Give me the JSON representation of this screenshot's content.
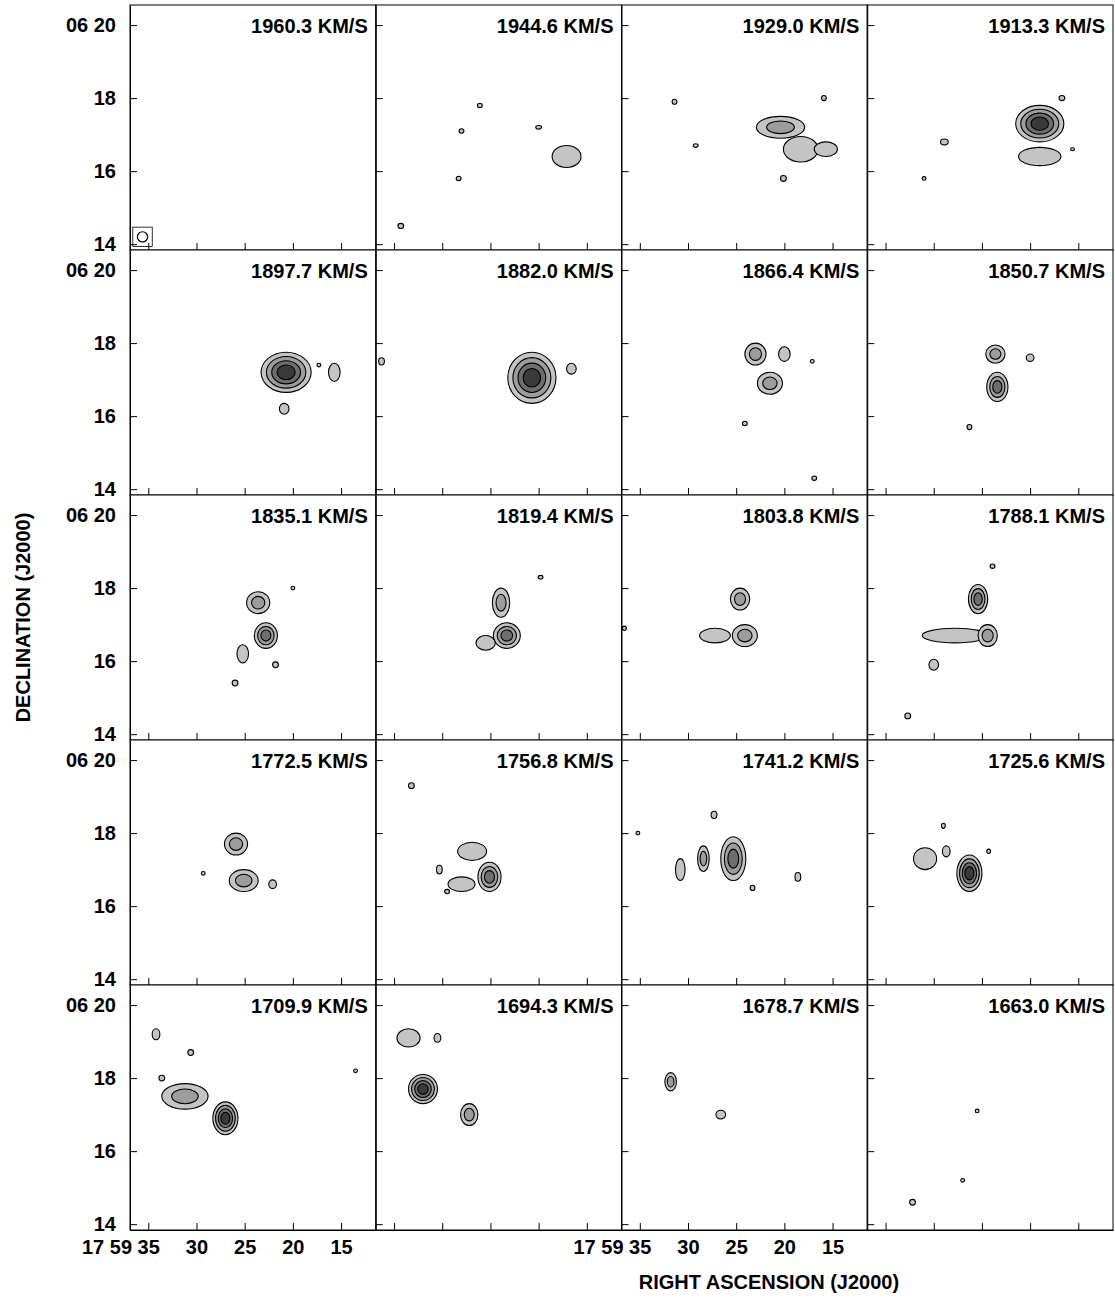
{
  "chart_data": {
    "type": "channel_map",
    "xlabel": "RIGHT ASCENSION (J2000)",
    "ylabel": "DECLINATION (J2000)",
    "xlim": [
      36.9,
      11.4
    ],
    "ylim": [
      13.84,
      20.55
    ],
    "xticks": [
      {
        "value": 35,
        "label": "17 59 35"
      },
      30,
      25,
      20,
      15
    ],
    "yticks": [
      {
        "value": 20,
        "label": "06 20"
      },
      18,
      16,
      14
    ],
    "panels": [
      {
        "title": "1960.3 KM/S",
        "tick_labels": "y",
        "beam": {
          "ra": 35.6,
          "dec": 14.2,
          "radius": 0.14
        },
        "sources": []
      },
      {
        "title": "1944.6 KM/S",
        "tick_labels": false,
        "sources": [
          {
            "ra": 17.1,
            "dec": 16.4,
            "rx": 1.5,
            "ry": 0.3,
            "levels": 1
          },
          {
            "ra": 26.1,
            "dec": 17.8,
            "rx": 0.25,
            "ry": 0.06,
            "levels": 1
          },
          {
            "ra": 28.0,
            "dec": 17.1,
            "rx": 0.25,
            "ry": 0.06,
            "levels": 1
          },
          {
            "ra": 28.3,
            "dec": 15.8,
            "rx": 0.25,
            "ry": 0.06,
            "levels": 1
          },
          {
            "ra": 34.3,
            "dec": 14.5,
            "rx": 0.3,
            "ry": 0.07,
            "levels": 1
          },
          {
            "ra": 20.0,
            "dec": 17.2,
            "rx": 0.3,
            "ry": 0.05,
            "levels": 1
          }
        ]
      },
      {
        "title": "1929.0 KM/S",
        "tick_labels": false,
        "sources": [
          {
            "ra": 20.4,
            "dec": 17.2,
            "rx": 2.5,
            "ry": 0.3,
            "levels": 2
          },
          {
            "ra": 18.3,
            "dec": 16.6,
            "rx": 1.8,
            "ry": 0.35,
            "levels": 1
          },
          {
            "ra": 15.7,
            "dec": 16.6,
            "rx": 1.2,
            "ry": 0.2,
            "levels": 1
          },
          {
            "ra": 31.4,
            "dec": 17.9,
            "rx": 0.25,
            "ry": 0.07,
            "levels": 1
          },
          {
            "ra": 29.2,
            "dec": 16.7,
            "rx": 0.25,
            "ry": 0.05,
            "levels": 1
          },
          {
            "ra": 20.1,
            "dec": 15.8,
            "rx": 0.3,
            "ry": 0.08,
            "levels": 1
          },
          {
            "ra": 15.9,
            "dec": 18.0,
            "rx": 0.25,
            "ry": 0.07,
            "levels": 1
          }
        ]
      },
      {
        "title": "1913.3 KM/S",
        "tick_labels": false,
        "sources": [
          {
            "ra": 19.0,
            "dec": 17.3,
            "rx": 2.5,
            "ry": 0.5,
            "levels": 4
          },
          {
            "ra": 19.0,
            "dec": 16.4,
            "rx": 2.2,
            "ry": 0.25,
            "levels": 1
          },
          {
            "ra": 28.9,
            "dec": 16.8,
            "rx": 0.4,
            "ry": 0.08,
            "levels": 1
          },
          {
            "ra": 31.0,
            "dec": 15.8,
            "rx": 0.2,
            "ry": 0.05,
            "levels": 1
          },
          {
            "ra": 16.7,
            "dec": 18.0,
            "rx": 0.3,
            "ry": 0.07,
            "levels": 1
          },
          {
            "ra": 15.6,
            "dec": 16.6,
            "rx": 0.2,
            "ry": 0.04,
            "levels": 1
          }
        ]
      },
      {
        "title": "1897.7 KM/S",
        "tick_labels": "y",
        "sources": [
          {
            "ra": 20.7,
            "dec": 17.2,
            "rx": 2.6,
            "ry": 0.55,
            "levels": 4
          },
          {
            "ra": 15.7,
            "dec": 17.2,
            "rx": 0.6,
            "ry": 0.25,
            "levels": 1
          },
          {
            "ra": 20.9,
            "dec": 16.2,
            "rx": 0.5,
            "ry": 0.15,
            "levels": 1
          },
          {
            "ra": 17.3,
            "dec": 17.4,
            "rx": 0.2,
            "ry": 0.05,
            "levels": 1
          }
        ]
      },
      {
        "title": "1882.0 KM/S",
        "tick_labels": false,
        "sources": [
          {
            "ra": 20.7,
            "dec": 17.05,
            "rx": 2.5,
            "ry": 0.7,
            "levels": 4
          },
          {
            "ra": 16.6,
            "dec": 17.3,
            "rx": 0.5,
            "ry": 0.15,
            "levels": 1
          },
          {
            "ra": 36.3,
            "dec": 17.5,
            "rx": 0.3,
            "ry": 0.1,
            "levels": 1
          }
        ]
      },
      {
        "title": "1866.4 KM/S",
        "tick_labels": false,
        "sources": [
          {
            "ra": 23.0,
            "dec": 17.7,
            "rx": 1.1,
            "ry": 0.3,
            "levels": 2
          },
          {
            "ra": 21.5,
            "dec": 16.9,
            "rx": 1.3,
            "ry": 0.3,
            "levels": 2
          },
          {
            "ra": 20.0,
            "dec": 17.7,
            "rx": 0.6,
            "ry": 0.2,
            "levels": 1
          },
          {
            "ra": 24.1,
            "dec": 15.8,
            "rx": 0.25,
            "ry": 0.06,
            "levels": 1
          },
          {
            "ra": 17.1,
            "dec": 17.5,
            "rx": 0.2,
            "ry": 0.05,
            "levels": 1
          },
          {
            "ra": 16.9,
            "dec": 14.3,
            "rx": 0.25,
            "ry": 0.06,
            "levels": 1
          }
        ]
      },
      {
        "title": "1850.7 KM/S",
        "tick_labels": false,
        "sources": [
          {
            "ra": 23.6,
            "dec": 17.7,
            "rx": 1.0,
            "ry": 0.25,
            "levels": 2
          },
          {
            "ra": 23.4,
            "dec": 16.8,
            "rx": 1.1,
            "ry": 0.4,
            "levels": 3
          },
          {
            "ra": 20.0,
            "dec": 17.6,
            "rx": 0.4,
            "ry": 0.1,
            "levels": 1
          },
          {
            "ra": 26.3,
            "dec": 15.7,
            "rx": 0.25,
            "ry": 0.07,
            "levels": 1
          }
        ]
      },
      {
        "title": "1835.1 KM/S",
        "tick_labels": "y",
        "sources": [
          {
            "ra": 23.6,
            "dec": 17.6,
            "rx": 1.2,
            "ry": 0.3,
            "levels": 2
          },
          {
            "ra": 22.8,
            "dec": 16.7,
            "rx": 1.2,
            "ry": 0.35,
            "levels": 3
          },
          {
            "ra": 25.2,
            "dec": 16.2,
            "rx": 0.6,
            "ry": 0.25,
            "levels": 1
          },
          {
            "ra": 21.8,
            "dec": 15.9,
            "rx": 0.3,
            "ry": 0.08,
            "levels": 1
          },
          {
            "ra": 26.0,
            "dec": 15.4,
            "rx": 0.3,
            "ry": 0.08,
            "levels": 1
          },
          {
            "ra": 20.0,
            "dec": 18.0,
            "rx": 0.2,
            "ry": 0.05,
            "levels": 1
          }
        ]
      },
      {
        "title": "1819.4 KM/S",
        "tick_labels": false,
        "sources": [
          {
            "ra": 23.9,
            "dec": 17.6,
            "rx": 0.9,
            "ry": 0.4,
            "levels": 2
          },
          {
            "ra": 23.3,
            "dec": 16.7,
            "rx": 1.4,
            "ry": 0.35,
            "levels": 3
          },
          {
            "ra": 25.5,
            "dec": 16.5,
            "rx": 1.0,
            "ry": 0.2,
            "levels": 1
          },
          {
            "ra": 19.8,
            "dec": 18.3,
            "rx": 0.25,
            "ry": 0.05,
            "levels": 1
          }
        ]
      },
      {
        "title": "1803.8 KM/S",
        "tick_labels": false,
        "sources": [
          {
            "ra": 24.6,
            "dec": 17.7,
            "rx": 1.0,
            "ry": 0.3,
            "levels": 2
          },
          {
            "ra": 24.1,
            "dec": 16.7,
            "rx": 1.3,
            "ry": 0.3,
            "levels": 2
          },
          {
            "ra": 27.2,
            "dec": 16.7,
            "rx": 1.6,
            "ry": 0.2,
            "levels": 1
          },
          {
            "ra": 36.6,
            "dec": 16.9,
            "rx": 0.2,
            "ry": 0.06,
            "levels": 1
          }
        ]
      },
      {
        "title": "1788.1 KM/S",
        "tick_labels": false,
        "sources": [
          {
            "ra": 25.4,
            "dec": 17.7,
            "rx": 1.0,
            "ry": 0.4,
            "levels": 3
          },
          {
            "ra": 27.8,
            "dec": 16.7,
            "rx": 3.4,
            "ry": 0.2,
            "levels": 1
          },
          {
            "ra": 24.4,
            "dec": 16.7,
            "rx": 1.0,
            "ry": 0.3,
            "levels": 2
          },
          {
            "ra": 30.0,
            "dec": 15.9,
            "rx": 0.5,
            "ry": 0.15,
            "levels": 1
          },
          {
            "ra": 32.7,
            "dec": 14.5,
            "rx": 0.3,
            "ry": 0.08,
            "levels": 1
          },
          {
            "ra": 23.9,
            "dec": 18.6,
            "rx": 0.25,
            "ry": 0.06,
            "levels": 1
          }
        ]
      },
      {
        "title": "1772.5 KM/S",
        "tick_labels": "y",
        "sources": [
          {
            "ra": 25.9,
            "dec": 17.7,
            "rx": 1.2,
            "ry": 0.3,
            "levels": 2
          },
          {
            "ra": 25.1,
            "dec": 16.7,
            "rx": 1.5,
            "ry": 0.3,
            "levels": 2
          },
          {
            "ra": 22.1,
            "dec": 16.6,
            "rx": 0.4,
            "ry": 0.12,
            "levels": 1
          },
          {
            "ra": 29.3,
            "dec": 16.9,
            "rx": 0.2,
            "ry": 0.05,
            "levels": 1
          }
        ]
      },
      {
        "title": "1756.8 KM/S",
        "tick_labels": false,
        "sources": [
          {
            "ra": 26.9,
            "dec": 17.5,
            "rx": 1.5,
            "ry": 0.25,
            "levels": 1
          },
          {
            "ra": 28.0,
            "dec": 16.6,
            "rx": 1.4,
            "ry": 0.2,
            "levels": 1
          },
          {
            "ra": 25.1,
            "dec": 16.8,
            "rx": 1.2,
            "ry": 0.4,
            "levels": 3
          },
          {
            "ra": 33.2,
            "dec": 19.3,
            "rx": 0.3,
            "ry": 0.08,
            "levels": 1
          },
          {
            "ra": 29.5,
            "dec": 16.4,
            "rx": 0.25,
            "ry": 0.06,
            "levels": 1
          },
          {
            "ra": 30.3,
            "dec": 17.0,
            "rx": 0.3,
            "ry": 0.12,
            "levels": 1
          }
        ]
      },
      {
        "title": "1741.2 KM/S",
        "tick_labels": false,
        "sources": [
          {
            "ra": 25.3,
            "dec": 17.3,
            "rx": 1.3,
            "ry": 0.6,
            "levels": 3
          },
          {
            "ra": 28.4,
            "dec": 17.3,
            "rx": 0.6,
            "ry": 0.35,
            "levels": 2
          },
          {
            "ra": 30.8,
            "dec": 17.0,
            "rx": 0.5,
            "ry": 0.3,
            "levels": 1
          },
          {
            "ra": 27.3,
            "dec": 18.5,
            "rx": 0.3,
            "ry": 0.1,
            "levels": 1
          },
          {
            "ra": 23.3,
            "dec": 16.5,
            "rx": 0.25,
            "ry": 0.07,
            "levels": 1
          },
          {
            "ra": 18.6,
            "dec": 16.8,
            "rx": 0.3,
            "ry": 0.12,
            "levels": 1
          },
          {
            "ra": 35.2,
            "dec": 18.0,
            "rx": 0.2,
            "ry": 0.05,
            "levels": 1
          }
        ]
      },
      {
        "title": "1725.6 KM/S",
        "tick_labels": false,
        "sources": [
          {
            "ra": 26.3,
            "dec": 16.9,
            "rx": 1.3,
            "ry": 0.5,
            "levels": 4
          },
          {
            "ra": 30.9,
            "dec": 17.3,
            "rx": 1.2,
            "ry": 0.3,
            "levels": 1
          },
          {
            "ra": 28.7,
            "dec": 17.5,
            "rx": 0.4,
            "ry": 0.15,
            "levels": 1
          },
          {
            "ra": 29.0,
            "dec": 18.2,
            "rx": 0.2,
            "ry": 0.07,
            "levels": 1
          },
          {
            "ra": 24.3,
            "dec": 17.5,
            "rx": 0.2,
            "ry": 0.06,
            "levels": 1
          }
        ]
      },
      {
        "title": "1709.9 KM/S",
        "sources": [
          {
            "ra": 34.2,
            "dec": 19.2,
            "rx": 0.4,
            "ry": 0.15,
            "levels": 1
          },
          {
            "ra": 33.6,
            "dec": 18.0,
            "rx": 0.3,
            "ry": 0.08,
            "levels": 1
          },
          {
            "ra": 30.6,
            "dec": 18.7,
            "rx": 0.3,
            "ry": 0.08,
            "levels": 1
          },
          {
            "ra": 13.5,
            "dec": 18.2,
            "rx": 0.2,
            "ry": 0.05,
            "levels": 1
          },
          {
            "ra": 31.2,
            "dec": 17.5,
            "rx": 2.4,
            "ry": 0.35,
            "levels": 2
          },
          {
            "ra": 27.0,
            "dec": 16.9,
            "rx": 1.3,
            "ry": 0.45,
            "levels": 4
          }
        ]
      },
      {
        "title": "1694.3 KM/S",
        "tick_labels": false,
        "sources": [
          {
            "ra": 33.5,
            "dec": 19.1,
            "rx": 1.2,
            "ry": 0.25,
            "levels": 1
          },
          {
            "ra": 30.5,
            "dec": 19.1,
            "rx": 0.35,
            "ry": 0.12,
            "levels": 1
          },
          {
            "ra": 32.0,
            "dec": 17.7,
            "rx": 1.5,
            "ry": 0.4,
            "levels": 4
          },
          {
            "ra": 27.2,
            "dec": 17.0,
            "rx": 0.9,
            "ry": 0.3,
            "levels": 2
          }
        ]
      },
      {
        "title": "1678.7 KM/S",
        "tick_labels": "x",
        "sources": [
          {
            "ra": 31.8,
            "dec": 17.9,
            "rx": 0.6,
            "ry": 0.25,
            "levels": 2
          },
          {
            "ra": 26.6,
            "dec": 17.0,
            "rx": 0.5,
            "ry": 0.12,
            "levels": 1
          }
        ]
      },
      {
        "title": "1663.0 KM/S",
        "tick_labels": false,
        "sources": [
          {
            "ra": 25.5,
            "dec": 17.1,
            "rx": 0.2,
            "ry": 0.05,
            "levels": 1
          },
          {
            "ra": 27.0,
            "dec": 15.2,
            "rx": 0.2,
            "ry": 0.05,
            "levels": 1
          },
          {
            "ra": 32.2,
            "dec": 14.6,
            "rx": 0.3,
            "ry": 0.08,
            "levels": 1
          }
        ]
      }
    ]
  }
}
